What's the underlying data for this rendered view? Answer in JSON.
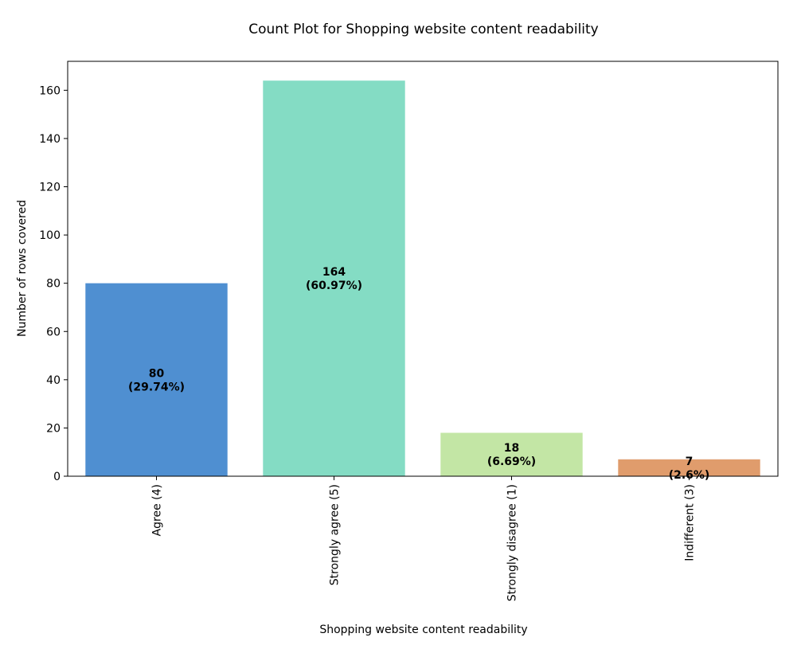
{
  "chart_data": {
    "type": "bar",
    "title": "Count Plot for Shopping website content readability",
    "xlabel": "Shopping website content readability",
    "ylabel": "Number of rows covered",
    "categories": [
      "Agree (4)",
      "Strongly agree (5)",
      "Strongly disagree (1)",
      "Indifferent (3)"
    ],
    "values": [
      80,
      164,
      18,
      7
    ],
    "data_labels": [
      [
        "80",
        "(29.74%)"
      ],
      [
        "164",
        "(60.97%)"
      ],
      [
        "18",
        "(6.69%)"
      ],
      [
        "7",
        "(2.6%)"
      ]
    ],
    "colors": [
      "#4f8fd1",
      "#84dcc4",
      "#c3e6a5",
      "#e09c6c"
    ],
    "ylim": [
      0,
      172
    ],
    "yticks": [
      0,
      20,
      40,
      60,
      80,
      100,
      120,
      140,
      160
    ],
    "grid": false,
    "legend": "none"
  }
}
